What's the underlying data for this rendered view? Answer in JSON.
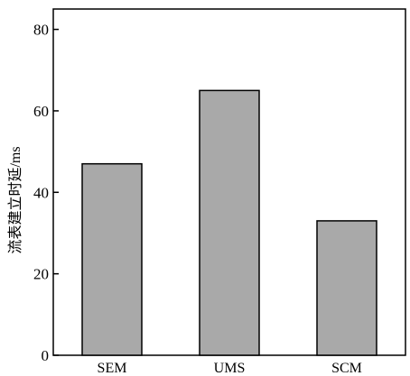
{
  "chart_data": {
    "type": "bar",
    "categories": [
      "SEM",
      "UMS",
      "SCM"
    ],
    "values": [
      47,
      65,
      33
    ],
    "title": "",
    "xlabel": "",
    "ylabel": "流表建立时延/ms",
    "ylim": [
      0,
      85
    ],
    "yticks": [
      0,
      20,
      40,
      60,
      80
    ],
    "grid": false,
    "legend": "none",
    "colors": {
      "bar_fill": "#a9a9a9",
      "bar_stroke": "#000000",
      "axis": "#000000",
      "background": "#ffffff"
    }
  }
}
